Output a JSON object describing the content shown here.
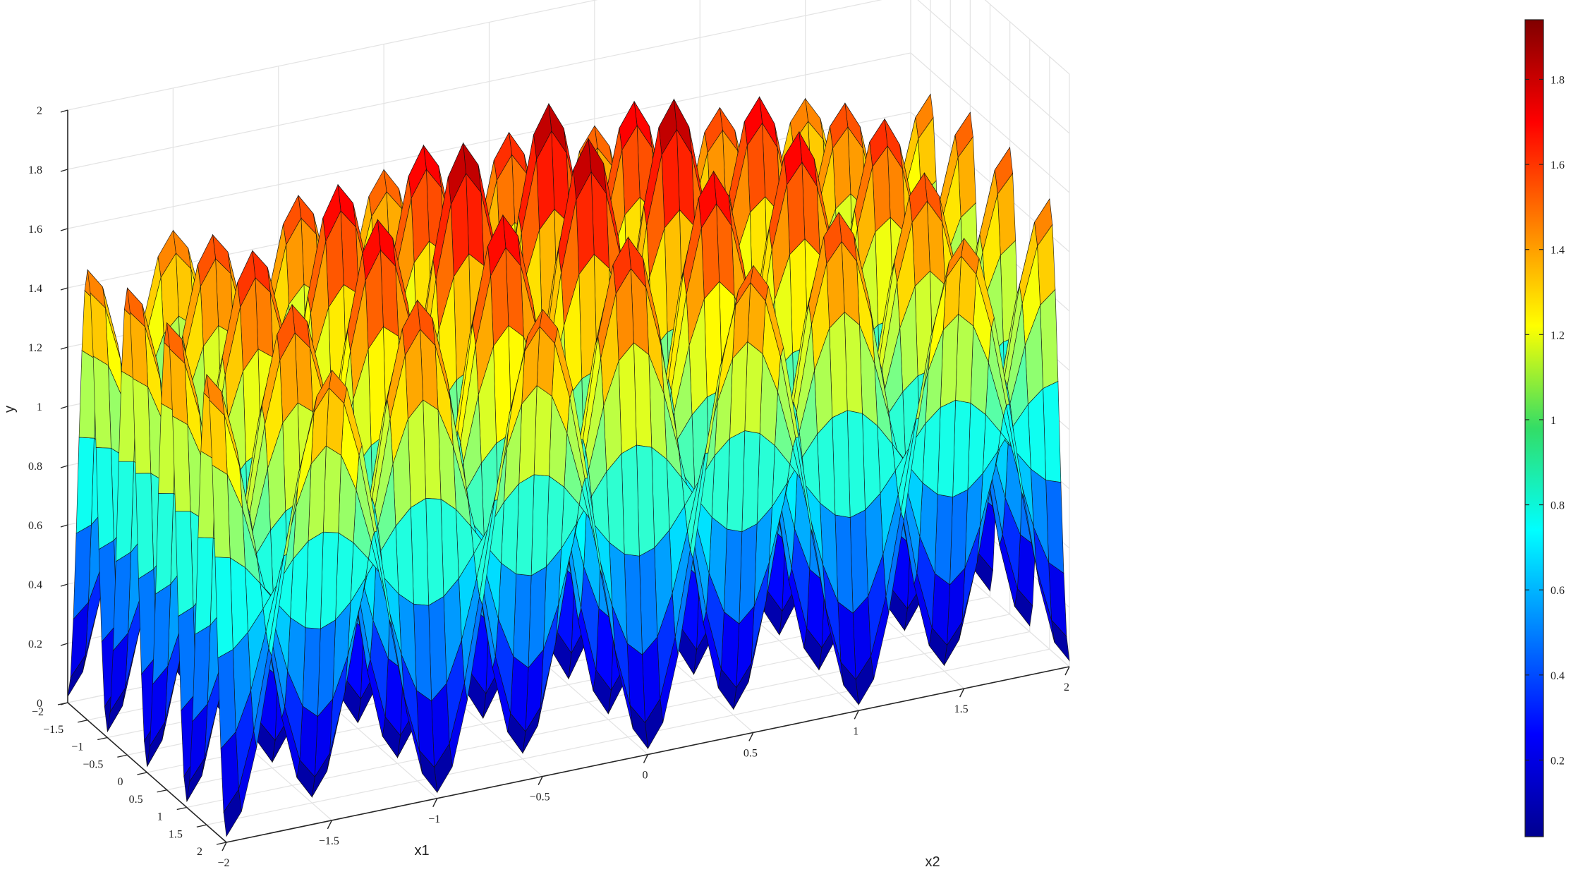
{
  "chart_data": {
    "type": "surface",
    "title": "",
    "xlabel": "x1",
    "ylabel": "x2",
    "zlabel": "y",
    "x1_range": [
      -2,
      2
    ],
    "x2_range": [
      -2,
      2
    ],
    "z_range": [
      0,
      2
    ],
    "x1_ticks": [
      "−2",
      "−1.5",
      "−1",
      "−0.5",
      "0",
      "0.5",
      "1",
      "1.5",
      "2"
    ],
    "x2_ticks": [
      "−2",
      "−1.5",
      "−1",
      "−0.5",
      "0",
      "0.5",
      "1",
      "1.5",
      "2"
    ],
    "z_ticks": [
      "0",
      "0.2",
      "0.4",
      "0.6",
      "0.8",
      "1",
      "1.2",
      "1.4",
      "1.6",
      "1.8",
      "2"
    ],
    "colorbar": {
      "colormap": "jet",
      "range": [
        0.02,
        1.94
      ],
      "ticks": [
        "0.2",
        "0.4",
        "0.6",
        "0.8",
        "1",
        "1.2",
        "1.4",
        "1.6",
        "1.8"
      ]
    },
    "grid": true,
    "surface_min": 0.02,
    "surface_max": 1.94
  }
}
